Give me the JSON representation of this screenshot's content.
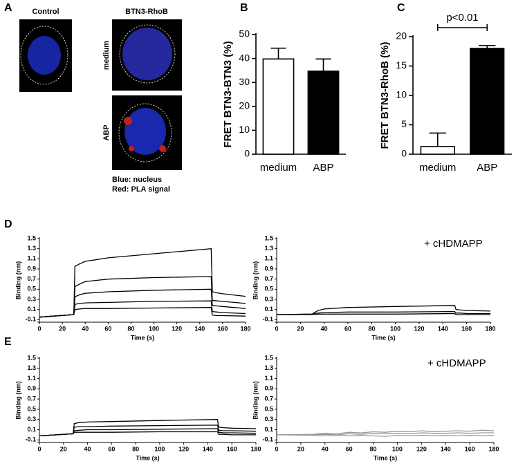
{
  "panel_a": {
    "label": "A",
    "control": "Control",
    "condition": "BTN3-RhoB",
    "medium": "medium",
    "abp": "ABP",
    "legend": [
      "Blue: nucleus",
      "Red: PLA signal"
    ]
  },
  "chart_data": [
    {
      "type": "bar",
      "label": "B",
      "y_label": "FRET BTN3-BTN3 (%)",
      "categories": [
        "medium",
        "ABP"
      ],
      "values": [
        39.8,
        34.7
      ],
      "errors": [
        4.5,
        5.1
      ],
      "colors": [
        "#ffffff",
        "#000000"
      ],
      "ylim": [
        0,
        50
      ],
      "yticks": [
        0,
        10,
        20,
        30,
        40,
        50
      ]
    },
    {
      "type": "bar",
      "label": "C",
      "y_label": "FRET BTN3-RhoB (%)",
      "categories": [
        "medium",
        "ABP"
      ],
      "values": [
        1.3,
        18.0
      ],
      "errors": [
        2.3,
        0.5
      ],
      "colors": [
        "#ffffff",
        "#000000"
      ],
      "ylim": [
        0,
        20
      ],
      "yticks": [
        0,
        5,
        10,
        15,
        20
      ],
      "annotation": "p<0.01"
    },
    {
      "type": "line",
      "label": "D",
      "x_label": "Time (s)",
      "y_label": "Binding (nm)",
      "x": [
        0,
        30,
        31,
        35,
        40,
        60,
        100,
        150,
        151,
        155,
        160,
        180
      ],
      "series": [
        {
          "color": "#000000",
          "values": [
            -0.05,
            0,
            0.95,
            1.0,
            1.05,
            1.12,
            1.2,
            1.3,
            0.45,
            0.43,
            0.41,
            0.36
          ]
        },
        {
          "color": "#000000",
          "values": [
            -0.05,
            0,
            0.55,
            0.6,
            0.65,
            0.7,
            0.73,
            0.75,
            0.28,
            0.27,
            0.26,
            0.22
          ]
        },
        {
          "color": "#000000",
          "values": [
            -0.05,
            0,
            0.35,
            0.39,
            0.42,
            0.45,
            0.48,
            0.5,
            0.18,
            0.17,
            0.16,
            0.12
          ]
        },
        {
          "color": "#000000",
          "values": [
            -0.05,
            0,
            0.2,
            0.22,
            0.23,
            0.24,
            0.26,
            0.27,
            0.06,
            0.05,
            0.04,
            0.02
          ]
        },
        {
          "color": "#000000",
          "values": [
            -0.05,
            0,
            0.1,
            0.11,
            0.12,
            0.12,
            0.13,
            0.14,
            -0.01,
            -0.02,
            -0.02,
            -0.03
          ]
        }
      ],
      "xlim": [
        0,
        180
      ],
      "ylim": [
        -0.15,
        1.5
      ],
      "xticks": [
        0,
        20,
        40,
        60,
        80,
        100,
        120,
        140,
        160,
        180
      ],
      "yticks": [
        -0.1,
        0.1,
        0.3,
        0.5,
        0.7,
        0.9,
        1.1,
        1.3,
        1.5
      ]
    },
    {
      "type": "line",
      "x_label": "Time (s)",
      "y_label": "Binding (nm)",
      "annotation": "+ cHDMAPP",
      "x": [
        0,
        30,
        31,
        35,
        40,
        60,
        100,
        150,
        151,
        155,
        160,
        180
      ],
      "series": [
        {
          "color": "#000000",
          "values": [
            0,
            0.01,
            0.03,
            0.08,
            0.11,
            0.14,
            0.16,
            0.18,
            0.1,
            0.09,
            0.08,
            0.07
          ]
        },
        {
          "color": "#000000",
          "values": [
            0,
            0.01,
            0.02,
            0.03,
            0.04,
            0.05,
            0.05,
            0.06,
            0.03,
            0.03,
            0.02,
            0.02
          ]
        },
        {
          "color": "#000000",
          "values": [
            0,
            0.0,
            0.0,
            0.01,
            0.01,
            0.01,
            0.01,
            0.02,
            0.0,
            0.0,
            0.0,
            0.0
          ]
        }
      ],
      "xlim": [
        0,
        180
      ],
      "ylim": [
        -0.15,
        1.5
      ],
      "xticks": [
        0,
        20,
        40,
        60,
        80,
        100,
        120,
        140,
        160,
        180
      ],
      "yticks": [
        -0.1,
        0.1,
        0.3,
        0.5,
        0.7,
        0.9,
        1.1,
        1.3,
        1.5
      ]
    },
    {
      "type": "line",
      "label": "E",
      "x_label": "Time (s)",
      "y_label": "Binding (nm)",
      "x": [
        0,
        28,
        29,
        33,
        40,
        60,
        100,
        148,
        149,
        153,
        160,
        180
      ],
      "series": [
        {
          "color": "#000000",
          "values": [
            -0.02,
            0.02,
            0.22,
            0.24,
            0.25,
            0.26,
            0.28,
            0.3,
            0.15,
            0.14,
            0.13,
            0.12
          ]
        },
        {
          "color": "#000000",
          "values": [
            -0.02,
            0.02,
            0.15,
            0.16,
            0.16,
            0.17,
            0.18,
            0.19,
            0.09,
            0.08,
            0.08,
            0.07
          ]
        },
        {
          "color": "#000000",
          "values": [
            -0.02,
            0.02,
            0.08,
            0.09,
            0.1,
            0.1,
            0.11,
            0.12,
            0.05,
            0.04,
            0.04,
            0.03
          ]
        },
        {
          "color": "#000000",
          "values": [
            -0.02,
            0.02,
            0.05,
            0.05,
            0.05,
            0.05,
            0.06,
            0.06,
            0.01,
            0.01,
            0.0,
            0.0
          ]
        }
      ],
      "xlim": [
        0,
        180
      ],
      "ylim": [
        -0.15,
        1.5
      ],
      "xticks": [
        0,
        20,
        40,
        60,
        80,
        100,
        120,
        140,
        160,
        180
      ],
      "yticks": [
        -0.1,
        0.1,
        0.3,
        0.5,
        0.7,
        0.9,
        1.1,
        1.3,
        1.5
      ]
    },
    {
      "type": "line",
      "x_label": "Time (s)",
      "y_label": "Binding (nm)",
      "annotation": "+ cHDMAPP",
      "x": [
        0,
        30,
        40,
        50,
        60,
        70,
        80,
        90,
        100,
        110,
        120,
        130,
        140,
        150,
        160,
        170,
        180
      ],
      "series": [
        {
          "color": "#999999",
          "values": [
            0,
            0.01,
            0.03,
            0.02,
            0.05,
            0.04,
            0.06,
            0.05,
            0.07,
            0.06,
            0.08,
            0.06,
            0.07,
            0.08,
            0.07,
            0.09,
            0.08
          ]
        },
        {
          "color": "#999999",
          "values": [
            0,
            0.0,
            0.01,
            0.0,
            0.02,
            0.01,
            0.03,
            0.02,
            0.03,
            0.02,
            0.04,
            0.03,
            0.03,
            0.04,
            0.03,
            0.04,
            0.04
          ]
        },
        {
          "color": "#999999",
          "values": [
            0,
            -0.01,
            -0.02,
            -0.01,
            -0.02,
            -0.01,
            -0.02,
            -0.03,
            -0.01,
            -0.02,
            -0.01,
            -0.02,
            -0.01,
            -0.02,
            -0.01,
            -0.02,
            -0.01
          ]
        }
      ],
      "xlim": [
        0,
        180
      ],
      "ylim": [
        -0.15,
        1.5
      ],
      "xticks": [
        0,
        20,
        40,
        60,
        80,
        100,
        120,
        140,
        160,
        180
      ],
      "yticks": [
        -0.1,
        0.1,
        0.3,
        0.5,
        0.7,
        0.9,
        1.1,
        1.3,
        1.5
      ]
    }
  ]
}
